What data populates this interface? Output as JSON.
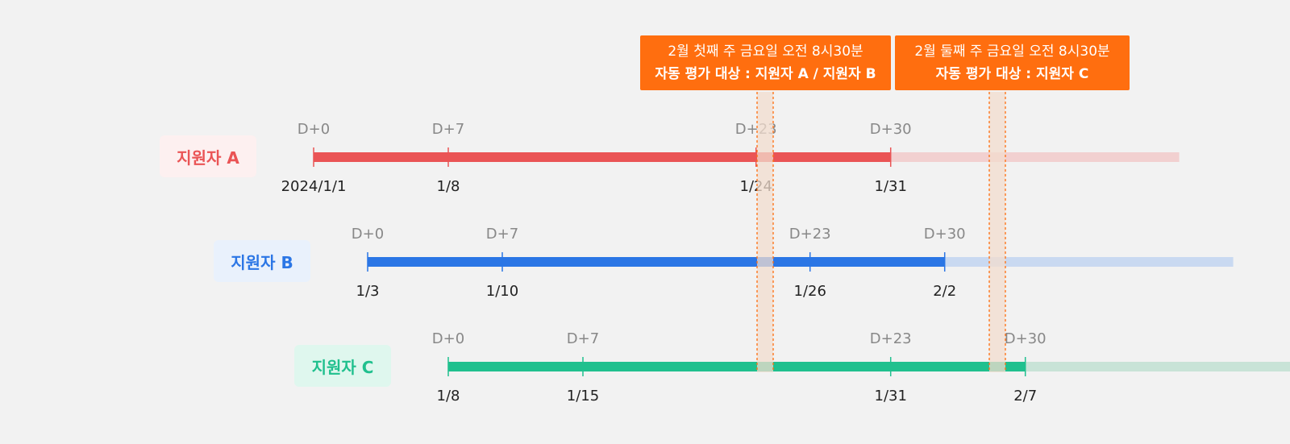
{
  "callouts": [
    {
      "line1": "2월 첫째 주 금요일 오전 8시30분",
      "line2": "자동 평가 대상 : 지원자 A / 지원자 B"
    },
    {
      "line1": "2월 둘째 주 금요일 오전 8시30분",
      "line2": "자동 평가 대상 : 지원자 C"
    }
  ],
  "applicants": [
    {
      "label": "지원자 A",
      "color": "#ea5455",
      "light_color": "#f2d0d0",
      "label_bg": "#fdf0f0",
      "milestones": [
        {
          "offset": "D+0",
          "date": "2024/1/1"
        },
        {
          "offset": "D+7",
          "date": "1/8"
        },
        {
          "offset": "D+23",
          "date": "1/24"
        },
        {
          "offset": "D+30",
          "date": "1/31"
        }
      ]
    },
    {
      "label": "지원자 B",
      "color": "#2b76e5",
      "light_color": "#c9d9f1",
      "label_bg": "#e9f1fc",
      "milestones": [
        {
          "offset": "D+0",
          "date": "1/3"
        },
        {
          "offset": "D+7",
          "date": "1/10"
        },
        {
          "offset": "D+23",
          "date": "1/26"
        },
        {
          "offset": "D+30",
          "date": "2/2"
        }
      ]
    },
    {
      "label": "지원자 C",
      "color": "#20c08e",
      "light_color": "#c8e3d7",
      "label_bg": "#dff7ee",
      "milestones": [
        {
          "offset": "D+0",
          "date": "1/8"
        },
        {
          "offset": "D+7",
          "date": "1/15"
        },
        {
          "offset": "D+23",
          "date": "1/31"
        },
        {
          "offset": "D+30",
          "date": "2/7"
        }
      ]
    }
  ],
  "colors": {
    "accent": "#ff6e0f",
    "highlight_band": "#f2dccd",
    "offset_text": "#888888",
    "date_text": "#222222",
    "background": "#f2f2f2"
  }
}
